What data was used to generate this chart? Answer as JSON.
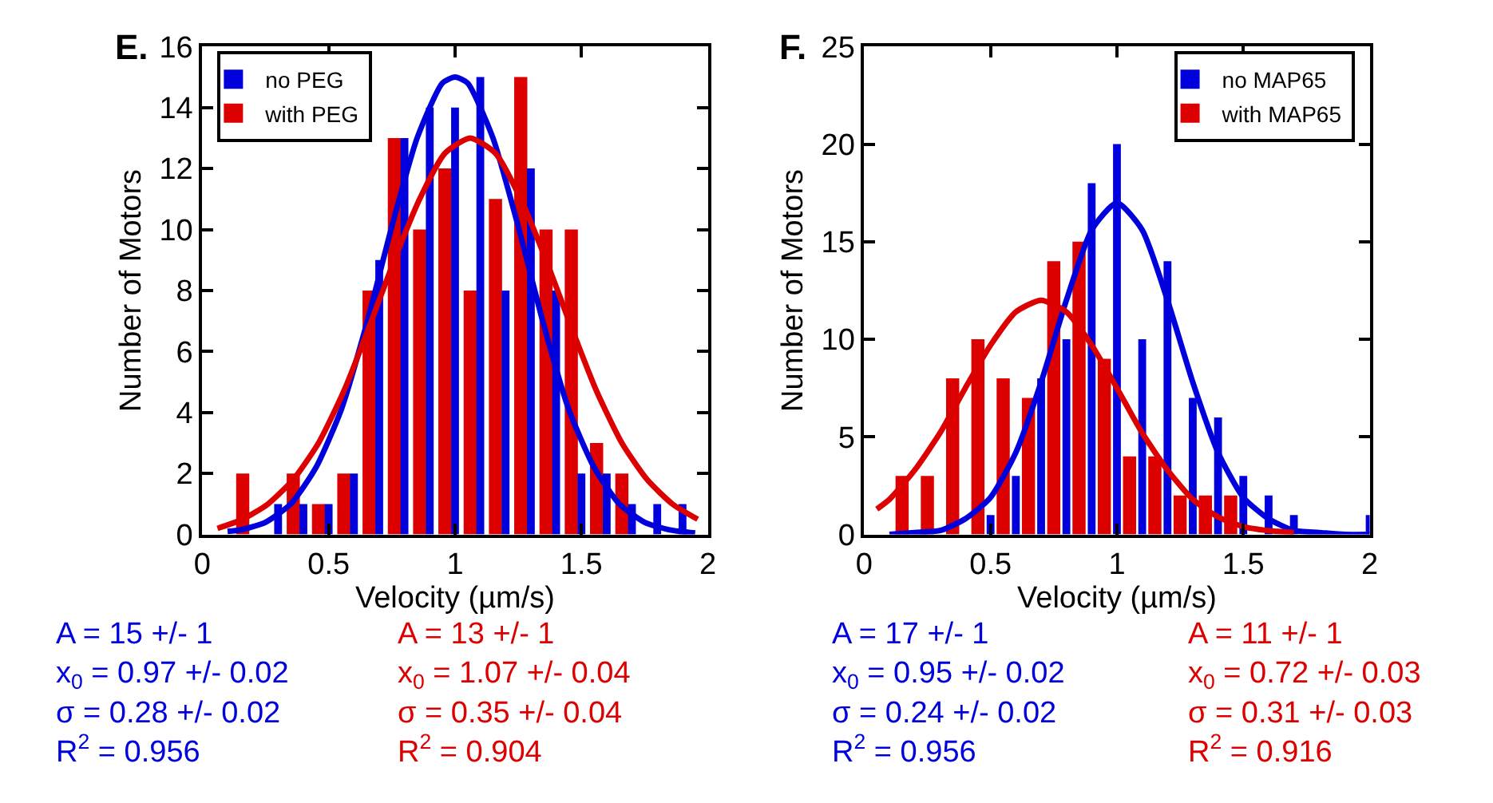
{
  "chart_data": [
    {
      "type": "bar",
      "title": "E.",
      "xlabel": "Velocity (µm/s)",
      "ylabel": "Number of Motors",
      "xlim": [
        0,
        2
      ],
      "xticks": [
        0,
        0.5,
        1,
        1.5,
        2
      ],
      "ylim": [
        0,
        16
      ],
      "yticks": [
        0,
        2,
        4,
        6,
        8,
        10,
        12,
        14,
        16
      ],
      "legend": "top left",
      "series": [
        {
          "name": "no PEG",
          "color": "#0000dd",
          "x": [
            0.3,
            0.4,
            0.5,
            0.6,
            0.7,
            0.8,
            0.9,
            1.0,
            1.1,
            1.2,
            1.3,
            1.4,
            1.5,
            1.6,
            1.7,
            1.8,
            1.9
          ],
          "values": [
            1,
            1,
            1,
            2,
            9,
            13,
            14,
            14,
            15,
            8,
            12,
            8,
            2,
            2,
            1,
            1,
            1
          ]
        },
        {
          "name": "with PEG",
          "color": "#dd0000",
          "x": [
            0.16,
            0.26,
            0.36,
            0.46,
            0.56,
            0.66,
            0.76,
            0.86,
            0.96,
            1.06,
            1.16,
            1.26,
            1.36,
            1.46,
            1.56,
            1.66
          ],
          "values": [
            2,
            0,
            2,
            1,
            2,
            8,
            13,
            10,
            12,
            8,
            11,
            15,
            10,
            10,
            3,
            2
          ]
        },
        {
          "type": "line",
          "color": "#0000dd",
          "x": [
            0.1,
            0.15,
            0.25,
            0.35,
            0.45,
            0.55,
            0.65,
            0.75,
            0.85,
            0.95,
            1.0,
            1.05,
            1.15,
            1.25,
            1.35,
            1.45,
            1.55,
            1.65,
            1.75,
            1.85,
            1.95
          ],
          "values": [
            0.1,
            0.15,
            0.4,
            1.0,
            2.2,
            4.1,
            6.9,
            10.1,
            13.0,
            14.8,
            15,
            14.8,
            13.0,
            10.1,
            6.9,
            4.1,
            2.2,
            1.0,
            0.4,
            0.15,
            0.05
          ]
        },
        {
          "type": "line",
          "color": "#dd0000",
          "x": [
            0.06,
            0.16,
            0.26,
            0.36,
            0.46,
            0.56,
            0.66,
            0.76,
            0.86,
            0.96,
            1.06,
            1.16,
            1.26,
            1.36,
            1.46,
            1.56,
            1.66,
            1.76,
            1.86,
            1.96
          ],
          "values": [
            0.2,
            0.5,
            1.0,
            1.8,
            3.0,
            4.7,
            6.8,
            9.0,
            11.0,
            12.5,
            13,
            12.5,
            11.0,
            9.0,
            6.8,
            4.7,
            3.0,
            1.8,
            1.0,
            0.5
          ]
        }
      ],
      "annotations": [
        "A = 15 +/- 1\nx$_{0}$ = 0.97 +/- 0.02\nσ = 0.28 +/- 0.02\nR$^{2}$ = 0.956",
        "A = 13 +/- 1\nx$_{0}$ = 1.07 +/- 0.04\nσ = 0.35 +/- 0.04\nR$^{2}$ = 0.904"
      ]
    },
    {
      "type": "bar",
      "title": "F.",
      "xlabel": "Velocity (µm/s)",
      "ylabel": "Number of Motors",
      "xlim": [
        0,
        2
      ],
      "xticks": [
        0,
        0.5,
        1,
        1.5,
        2
      ],
      "ylim": [
        0,
        25
      ],
      "yticks": [
        0,
        5,
        10,
        15,
        20,
        25
      ],
      "legend": "top right",
      "series": [
        {
          "name": "no MAP65",
          "color": "#0000dd",
          "x": [
            0.5,
            0.6,
            0.7,
            0.8,
            0.9,
            1.0,
            1.1,
            1.2,
            1.3,
            1.4,
            1.5,
            1.6,
            1.7,
            2.0
          ],
          "values": [
            1,
            3,
            8,
            10,
            18,
            20,
            10,
            14,
            7,
            6,
            3,
            2,
            1,
            1
          ]
        },
        {
          "name": "with MAP65",
          "color": "#dd0000",
          "x": [
            0.15,
            0.25,
            0.35,
            0.45,
            0.55,
            0.65,
            0.75,
            0.85,
            0.95,
            1.05,
            1.15,
            1.25,
            1.35,
            1.45
          ],
          "values": [
            3,
            3,
            8,
            10,
            8,
            7,
            14,
            15,
            9,
            4,
            4,
            2,
            2,
            2
          ]
        },
        {
          "type": "line",
          "color": "#0000dd",
          "x": [
            0.1,
            0.2,
            0.3,
            0.4,
            0.5,
            0.6,
            0.7,
            0.8,
            0.9,
            1.0,
            1.1,
            1.2,
            1.3,
            1.4,
            1.5,
            1.6,
            1.7,
            1.8,
            1.9,
            2.0
          ],
          "values": [
            0,
            0.1,
            0.2,
            0.8,
            1.9,
            4.2,
            7.8,
            12.0,
            15.6,
            17,
            15.6,
            12.0,
            7.8,
            4.2,
            1.9,
            0.8,
            0.2,
            0.1,
            0,
            0
          ]
        },
        {
          "type": "line",
          "color": "#dd0000",
          "x": [
            0.05,
            0.1,
            0.2,
            0.3,
            0.4,
            0.5,
            0.6,
            0.7,
            0.8,
            0.9,
            1.0,
            1.1,
            1.2,
            1.3,
            1.4,
            1.5,
            1.6,
            1.7
          ],
          "values": [
            1.3,
            1.8,
            3.3,
            5.2,
            7.5,
            9.7,
            11.4,
            12,
            11.4,
            9.7,
            7.5,
            5.2,
            3.3,
            1.8,
            0.9,
            0.4,
            0.2,
            0.1
          ]
        }
      ],
      "annotations": [
        "A = 17 +/- 1\nx$_{0}$ = 0.95 +/- 0.02\nσ = 0.24 +/- 0.02\nR$^{2}$ = 0.956",
        "A = 11 +/- 1\nx$_{0}$ = 0.72 +/- 0.03\nσ = 0.31 +/- 0.03\nR$^{2}$ = 0.916"
      ]
    }
  ]
}
